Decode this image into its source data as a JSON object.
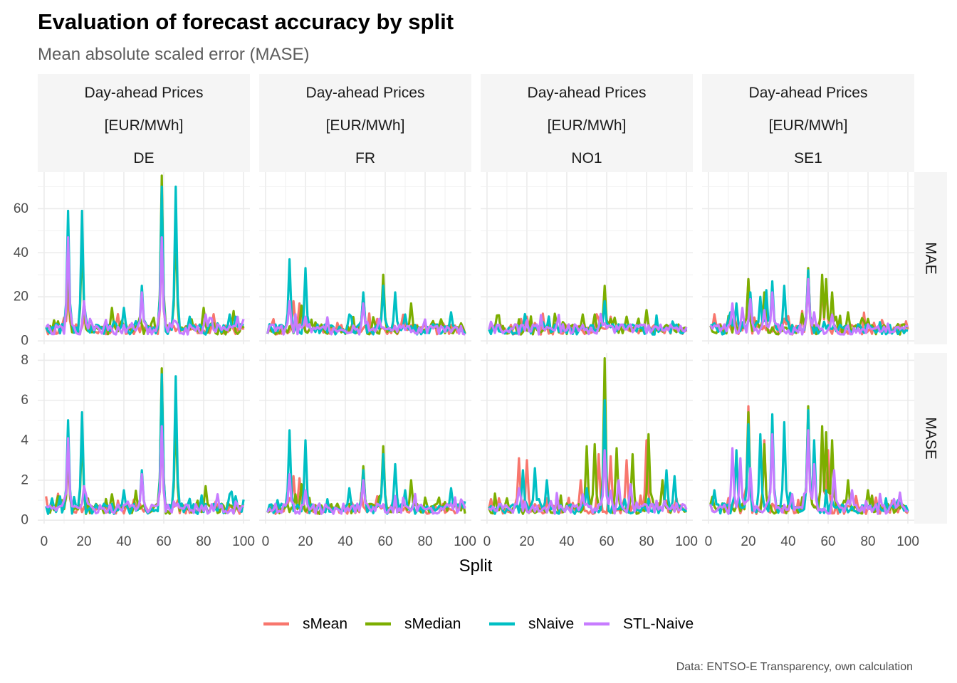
{
  "title": "Evaluation of forecast accuracy by split",
  "subtitle": "Mean absolute scaled error (MASE)",
  "caption": "Data: ENTSO-E Transparency, own calculation",
  "chart_data": {
    "type": "line",
    "xlabel": "Split",
    "ylabel": "",
    "xlim": [
      0,
      100
    ],
    "x_ticks": [
      "0",
      "20",
      "40",
      "60",
      "80",
      "100"
    ],
    "column_strips": [
      {
        "line1": "Day-ahead Prices",
        "line2": "[EUR/MWh]",
        "line3": "DE"
      },
      {
        "line1": "Day-ahead Prices",
        "line2": "[EUR/MWh]",
        "line3": "FR"
      },
      {
        "line1": "Day-ahead Prices",
        "line2": "[EUR/MWh]",
        "line3": "NO1"
      },
      {
        "line1": "Day-ahead Prices",
        "line2": "[EUR/MWh]",
        "line3": "SE1"
      }
    ],
    "rows": [
      {
        "label": "MAE",
        "ylim": [
          0,
          75
        ],
        "y_ticks": [
          0,
          20,
          40,
          60
        ]
      },
      {
        "label": "MASE",
        "ylim": [
          0,
          8.2
        ],
        "y_ticks": [
          0,
          2,
          4,
          6,
          8
        ]
      }
    ],
    "series": [
      {
        "name": "sMean",
        "color": "#F8766D"
      },
      {
        "name": "sMedian",
        "color": "#7CAE00"
      },
      {
        "name": "sNaive",
        "color": "#00BFC4"
      },
      {
        "name": "STL-Naive",
        "color": "#C77CFF"
      }
    ],
    "peaks": {
      "DE-MAE": {
        "sMean": [
          [
            12,
            22
          ],
          [
            59,
            45
          ],
          [
            20,
            10
          ]
        ],
        "sMedian": [
          [
            12,
            35
          ],
          [
            19,
            48
          ],
          [
            59,
            76
          ],
          [
            66,
            55
          ],
          [
            80,
            15
          ],
          [
            34,
            15
          ]
        ],
        "sNaive": [
          [
            12,
            59
          ],
          [
            19,
            59
          ],
          [
            59,
            70
          ],
          [
            66,
            70
          ],
          [
            49,
            25
          ],
          [
            40,
            15
          ],
          [
            93,
            12
          ],
          [
            96,
            11
          ],
          [
            73,
            11
          ]
        ],
        "STL-Naive": [
          [
            12,
            47
          ],
          [
            59,
            47
          ],
          [
            49,
            22
          ],
          [
            20,
            18
          ],
          [
            81,
            12
          ]
        ]
      },
      "DE-MASE": {
        "sMean": [
          [
            12,
            3
          ],
          [
            59,
            4.5
          ]
        ],
        "sMedian": [
          [
            12,
            3.5
          ],
          [
            19,
            4.5
          ],
          [
            59,
            7.6
          ],
          [
            66,
            5.5
          ],
          [
            81,
            1.7
          ],
          [
            34,
            1.3
          ]
        ],
        "sNaive": [
          [
            12,
            5
          ],
          [
            19,
            5.4
          ],
          [
            59,
            7.3
          ],
          [
            66,
            7.2
          ],
          [
            49,
            2.5
          ],
          [
            40,
            1.5
          ],
          [
            93,
            1.3
          ],
          [
            96,
            1.2
          ]
        ],
        "STL-Naive": [
          [
            12,
            4.1
          ],
          [
            59,
            4.7
          ],
          [
            49,
            2.3
          ],
          [
            20,
            1.7
          ]
        ]
      },
      "FR-MAE": {
        "sMean": [
          [
            14,
            18
          ],
          [
            17,
            17
          ],
          [
            56,
            10
          ]
        ],
        "sMedian": [
          [
            59,
            30
          ],
          [
            49,
            21
          ],
          [
            73,
            17
          ],
          [
            18,
            16
          ],
          [
            84,
            9
          ],
          [
            98,
            8
          ]
        ],
        "sNaive": [
          [
            12,
            37
          ],
          [
            20,
            33
          ],
          [
            59,
            25
          ],
          [
            65,
            22
          ],
          [
            49,
            22
          ],
          [
            42,
            12
          ],
          [
            70,
            12
          ],
          [
            93,
            13
          ]
        ],
        "STL-Naive": [
          [
            12,
            18
          ],
          [
            49,
            17
          ],
          [
            20,
            11
          ],
          [
            57,
            10
          ]
        ]
      },
      "FR-MASE": {
        "sMean": [
          [
            14,
            2.2
          ],
          [
            17,
            2.1
          ],
          [
            56,
            1.2
          ]
        ],
        "sMedian": [
          [
            59,
            3.7
          ],
          [
            49,
            2.7
          ],
          [
            73,
            2
          ],
          [
            18,
            1.8
          ]
        ],
        "sNaive": [
          [
            12,
            4.5
          ],
          [
            20,
            4
          ],
          [
            59,
            3.3
          ],
          [
            65,
            2.8
          ],
          [
            49,
            2.5
          ],
          [
            42,
            1.6
          ],
          [
            70,
            1.5
          ],
          [
            93,
            1.6
          ]
        ],
        "STL-Naive": [
          [
            12,
            2.3
          ],
          [
            49,
            2
          ],
          [
            20,
            1.5
          ]
        ]
      },
      "NO1-MAE": {
        "sMean": [
          [
            17,
            10
          ],
          [
            20,
            11
          ],
          [
            56,
            10
          ],
          [
            62,
            11
          ],
          [
            80,
            12
          ]
        ],
        "sMedian": [
          [
            59,
            25
          ],
          [
            48,
            12
          ],
          [
            54,
            12
          ],
          [
            62,
            10
          ],
          [
            70,
            11
          ],
          [
            80,
            14
          ]
        ],
        "sNaive": [
          [
            59,
            18
          ],
          [
            20,
            8
          ],
          [
            24,
            7
          ],
          [
            48,
            6
          ],
          [
            90,
            5
          ]
        ],
        "STL-Naive": [
          [
            59,
            8
          ],
          [
            30,
            4
          ]
        ]
      },
      "NO1-MASE": {
        "sMean": [
          [
            16,
            3.1
          ],
          [
            20,
            3
          ],
          [
            47,
            2
          ],
          [
            56,
            3.3
          ],
          [
            62,
            3.2
          ],
          [
            70,
            3
          ],
          [
            80,
            4
          ],
          [
            88,
            2
          ]
        ],
        "sMedian": [
          [
            59,
            8.1
          ],
          [
            50,
            3.7
          ],
          [
            54,
            3.8
          ],
          [
            65,
            3.6
          ],
          [
            73,
            3.3
          ],
          [
            81,
            4.3
          ],
          [
            88,
            2
          ]
        ],
        "sNaive": [
          [
            59,
            6
          ],
          [
            18,
            2.5
          ],
          [
            24,
            2.6
          ],
          [
            30,
            2
          ],
          [
            50,
            1.6
          ],
          [
            90,
            2.5
          ],
          [
            94,
            2.2
          ]
        ],
        "STL-Naive": [
          [
            59,
            3.5
          ],
          [
            16,
            1.6
          ],
          [
            48,
            1.3
          ],
          [
            66,
            2
          ],
          [
            72,
            1.8
          ]
        ]
      },
      "SE1-MAE": {
        "sMean": [
          [
            20,
            28
          ],
          [
            50,
            28
          ],
          [
            57,
            25
          ],
          [
            59,
            26
          ]
        ],
        "sMedian": [
          [
            20,
            28
          ],
          [
            28,
            22
          ],
          [
            50,
            33
          ],
          [
            57,
            30
          ],
          [
            59,
            28
          ],
          [
            62,
            22
          ],
          [
            70,
            13
          ],
          [
            80,
            10
          ]
        ],
        "sNaive": [
          [
            50,
            32
          ],
          [
            21,
            22
          ],
          [
            26,
            20
          ],
          [
            29,
            23
          ],
          [
            32,
            27
          ],
          [
            38,
            25
          ],
          [
            14,
            17
          ],
          [
            11,
            13
          ],
          [
            3,
            8
          ]
        ],
        "STL-Naive": [
          [
            12,
            17
          ],
          [
            17,
            15
          ],
          [
            21,
            19
          ],
          [
            28,
            14
          ],
          [
            32,
            22
          ],
          [
            50,
            28
          ],
          [
            53,
            13
          ],
          [
            62,
            12
          ]
        ]
      },
      "SE1-MASE": {
        "sMean": [
          [
            20,
            5.7
          ],
          [
            28,
            4
          ],
          [
            50,
            5
          ],
          [
            57,
            4.5
          ],
          [
            60,
            3.5
          ]
        ],
        "sMedian": [
          [
            20,
            5.4
          ],
          [
            28,
            3.8
          ],
          [
            50,
            5.7
          ],
          [
            57,
            4.7
          ],
          [
            59,
            4.4
          ],
          [
            62,
            4
          ],
          [
            70,
            2
          ],
          [
            80,
            1.5
          ]
        ],
        "sNaive": [
          [
            20,
            4.8
          ],
          [
            26,
            4.3
          ],
          [
            32,
            5.3
          ],
          [
            38,
            4.9
          ],
          [
            14,
            3.5
          ],
          [
            50,
            5.5
          ],
          [
            53,
            4
          ],
          [
            3,
            1.5
          ],
          [
            95,
            1
          ]
        ],
        "STL-Naive": [
          [
            12,
            3.6
          ],
          [
            16,
            3.1
          ],
          [
            21,
            2.6
          ],
          [
            32,
            4.3
          ],
          [
            50,
            4.5
          ],
          [
            53,
            2.8
          ],
          [
            63,
            2.5
          ],
          [
            72,
            1.5
          ]
        ]
      }
    }
  }
}
